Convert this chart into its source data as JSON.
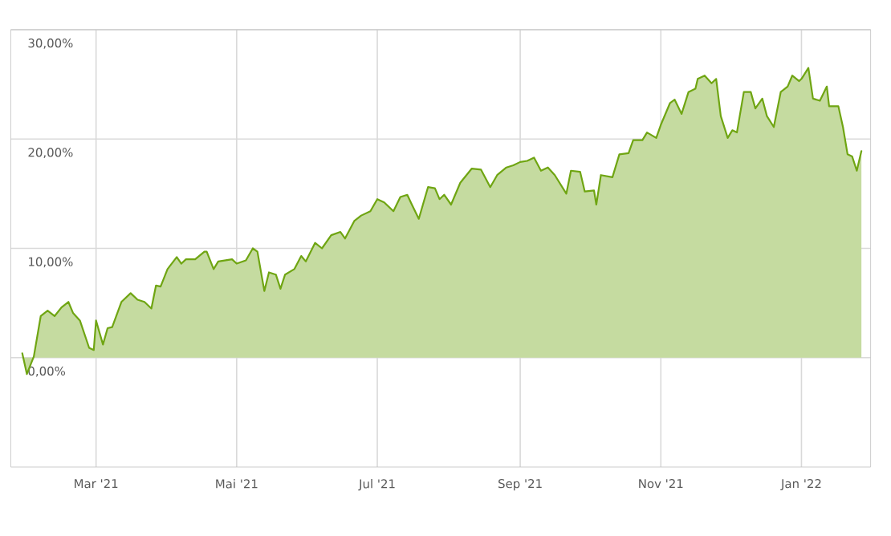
{
  "chart_data": {
    "type": "area",
    "x": [
      "2021-01-28",
      "2021-01-30",
      "2021-02-02",
      "2021-02-05",
      "2021-02-08",
      "2021-02-11",
      "2021-02-14",
      "2021-02-17",
      "2021-02-19",
      "2021-02-22",
      "2021-02-26",
      "2021-02-28",
      "2021-03-01",
      "2021-03-04",
      "2021-03-06",
      "2021-03-08",
      "2021-03-12",
      "2021-03-16",
      "2021-03-19",
      "2021-03-22",
      "2021-03-25",
      "2021-03-27",
      "2021-03-29",
      "2021-04-01",
      "2021-04-05",
      "2021-04-07",
      "2021-04-09",
      "2021-04-13",
      "2021-04-17",
      "2021-04-18",
      "2021-04-21",
      "2021-04-23",
      "2021-04-29",
      "2021-05-01",
      "2021-05-05",
      "2021-05-08",
      "2021-05-10",
      "2021-05-13",
      "2021-05-15",
      "2021-05-18",
      "2021-05-20",
      "2021-05-22",
      "2021-05-26",
      "2021-05-29",
      "2021-05-31",
      "2021-06-04",
      "2021-06-07",
      "2021-06-11",
      "2021-06-15",
      "2021-06-17",
      "2021-06-21",
      "2021-06-24",
      "2021-06-28",
      "2021-07-01",
      "2021-07-04",
      "2021-07-08",
      "2021-07-11",
      "2021-07-14",
      "2021-07-16",
      "2021-07-19",
      "2021-07-23",
      "2021-07-26",
      "2021-07-28",
      "2021-07-30",
      "2021-08-02",
      "2021-08-06",
      "2021-08-11",
      "2021-08-15",
      "2021-08-19",
      "2021-08-22",
      "2021-08-26",
      "2021-08-29",
      "2021-09-01",
      "2021-09-04",
      "2021-09-07",
      "2021-09-10",
      "2021-09-13",
      "2021-09-16",
      "2021-09-21",
      "2021-09-23",
      "2021-09-27",
      "2021-09-29",
      "2021-10-03",
      "2021-10-04",
      "2021-10-06",
      "2021-10-11",
      "2021-10-14",
      "2021-10-18",
      "2021-10-20",
      "2021-10-24",
      "2021-10-26",
      "2021-10-30",
      "2021-11-01",
      "2021-11-05",
      "2021-11-07",
      "2021-11-10",
      "2021-11-13",
      "2021-11-16",
      "2021-11-17",
      "2021-11-20",
      "2021-11-23",
      "2021-11-25",
      "2021-11-27",
      "2021-11-30",
      "2021-12-02",
      "2021-12-04",
      "2021-12-07",
      "2021-12-10",
      "2021-12-12",
      "2021-12-15",
      "2021-12-17",
      "2021-12-20",
      "2021-12-23",
      "2021-12-26",
      "2021-12-28",
      "2021-12-31",
      "2022-01-01",
      "2022-01-04",
      "2022-01-06",
      "2022-01-09",
      "2022-01-12",
      "2022-01-13",
      "2022-01-17",
      "2022-01-19",
      "2022-01-21",
      "2022-01-23",
      "2022-01-25",
      "2022-01-27"
    ],
    "series": [
      {
        "color": "#6fa512",
        "values": [
          0.4,
          -1.5,
          0.1,
          3.8,
          4.3,
          3.8,
          4.6,
          5.1,
          4.1,
          3.4,
          0.9,
          0.7,
          3.4,
          1.2,
          2.7,
          2.8,
          5.1,
          5.9,
          5.3,
          5.1,
          4.5,
          6.6,
          6.5,
          8.1,
          9.2,
          8.6,
          9.0,
          9.0,
          9.7,
          9.7,
          8.1,
          8.8,
          9.0,
          8.6,
          8.9,
          10.0,
          9.7,
          6.1,
          7.8,
          7.6,
          6.3,
          7.6,
          8.1,
          9.3,
          8.8,
          10.5,
          10.0,
          11.2,
          11.5,
          10.9,
          12.5,
          13.0,
          13.4,
          14.5,
          14.2,
          13.4,
          14.7,
          14.9,
          14.0,
          12.7,
          15.6,
          15.5,
          14.5,
          14.9,
          14.0,
          16.0,
          17.3,
          17.2,
          15.6,
          16.7,
          17.4,
          17.6,
          17.9,
          18.0,
          18.3,
          17.1,
          17.4,
          16.7,
          15.0,
          17.1,
          17.0,
          15.2,
          15.3,
          14.0,
          16.7,
          16.5,
          18.6,
          18.7,
          19.9,
          19.9,
          20.6,
          20.1,
          21.3,
          23.3,
          23.6,
          22.3,
          24.3,
          24.6,
          25.5,
          25.8,
          25.1,
          25.5,
          22.1,
          20.1,
          20.8,
          20.6,
          24.3,
          24.3,
          22.8,
          23.7,
          22.1,
          21.1,
          24.3,
          24.8,
          25.8,
          25.3,
          25.5,
          26.5,
          23.7,
          23.5,
          24.8,
          23.0,
          23.0,
          21.1,
          18.6,
          18.4,
          17.1,
          18.9
        ]
      }
    ],
    "xlim": [
      "2021-01-23",
      "2022-01-31"
    ],
    "xticks": [
      {
        "value": "2021-03-01",
        "label": "Mar '21"
      },
      {
        "value": "2021-05-01",
        "label": "Mai '21"
      },
      {
        "value": "2021-07-01",
        "label": "Jul '21"
      },
      {
        "value": "2021-09-01",
        "label": "Sep '21"
      },
      {
        "value": "2021-11-01",
        "label": "Nov '21"
      },
      {
        "value": "2022-01-01",
        "label": "Jan '22"
      }
    ],
    "ylim": [
      -10,
      30
    ],
    "yticks": [
      {
        "value": 0,
        "label": "0,00%"
      },
      {
        "value": 10,
        "label": "10,00%"
      },
      {
        "value": 20,
        "label": "20,00%"
      },
      {
        "value": 30,
        "label": "30,00%"
      }
    ],
    "grid": true
  }
}
